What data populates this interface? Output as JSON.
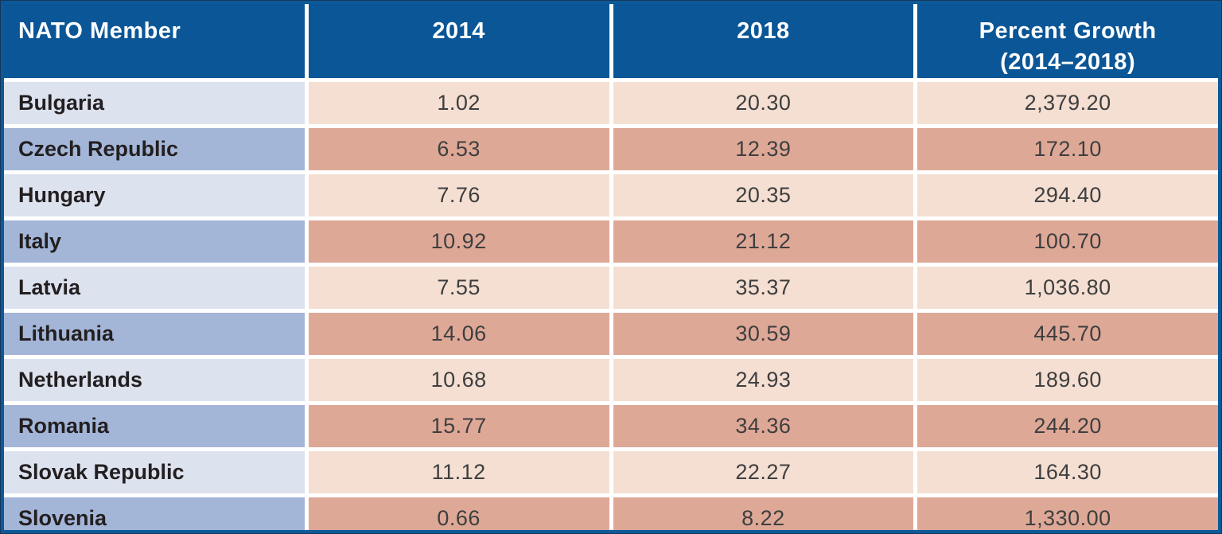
{
  "table": {
    "columns": [
      {
        "key": "member",
        "label": "NATO Member"
      },
      {
        "key": "y2014",
        "label": "2014"
      },
      {
        "key": "y2018",
        "label": "2018"
      },
      {
        "key": "growth",
        "label": "Percent Growth (2014–2018)"
      }
    ],
    "rows": [
      {
        "member": "Bulgaria",
        "y2014": "1.02",
        "y2018": "20.30",
        "growth": "2,379.20"
      },
      {
        "member": "Czech Republic",
        "y2014": "6.53",
        "y2018": "12.39",
        "growth": "172.10"
      },
      {
        "member": "Hungary",
        "y2014": "7.76",
        "y2018": "20.35",
        "growth": "294.40"
      },
      {
        "member": "Italy",
        "y2014": "10.92",
        "y2018": "21.12",
        "growth": "100.70"
      },
      {
        "member": "Latvia",
        "y2014": "7.55",
        "y2018": "35.37",
        "growth": "1,036.80"
      },
      {
        "member": "Lithuania",
        "y2014": "14.06",
        "y2018": "30.59",
        "growth": "445.70"
      },
      {
        "member": "Netherlands",
        "y2014": "10.68",
        "y2018": "24.93",
        "growth": "189.60"
      },
      {
        "member": "Romania",
        "y2014": "15.77",
        "y2018": "34.36",
        "growth": "244.20"
      },
      {
        "member": "Slovak Republic",
        "y2014": "11.12",
        "y2018": "22.27",
        "growth": "164.30"
      },
      {
        "member": "Slovenia",
        "y2014": "0.66",
        "y2018": "8.22",
        "growth": "1,330.00"
      }
    ]
  },
  "colors": {
    "header_bg": "#0A5696",
    "header_text": "#FFFFFF",
    "frame": "#0C5998",
    "frame_dark": "#16365C",
    "row_light_member": "#DDE2EF",
    "row_dark_member": "#A4B6D8",
    "row_light_value": "#F4DFD2",
    "row_dark_value": "#DEA897",
    "member_text": "#231F20",
    "value_text": "#3E3E3F"
  },
  "chart_data": {
    "type": "table",
    "columns": [
      "NATO Member",
      "2014",
      "2018",
      "Percent Growth (2014–2018)"
    ],
    "rows": [
      [
        "Bulgaria",
        "1.02",
        "20.30",
        "2,379.20"
      ],
      [
        "Czech Republic",
        "6.53",
        "12.39",
        "172.10"
      ],
      [
        "Hungary",
        "7.76",
        "20.35",
        "294.40"
      ],
      [
        "Italy",
        "10.92",
        "21.12",
        "100.70"
      ],
      [
        "Latvia",
        "7.55",
        "35.37",
        "1,036.80"
      ],
      [
        "Lithuania",
        "14.06",
        "30.59",
        "445.70"
      ],
      [
        "Netherlands",
        "10.68",
        "24.93",
        "189.60"
      ],
      [
        "Romania",
        "15.77",
        "34.36",
        "244.20"
      ],
      [
        "Slovak Republic",
        "11.12",
        "22.27",
        "164.30"
      ],
      [
        "Slovenia",
        "0.66",
        "8.22",
        "1,330.00"
      ]
    ]
  }
}
